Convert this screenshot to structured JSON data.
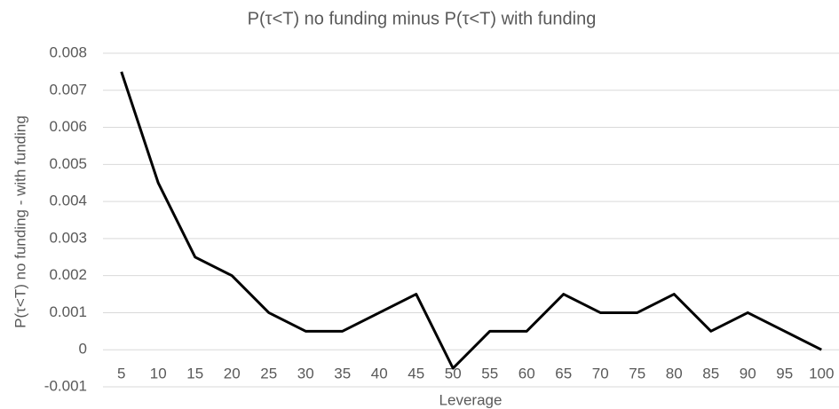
{
  "chart_data": {
    "type": "line",
    "title": "P(τ<T) no funding minus P(τ<T) with funding",
    "x_label": "Leverage",
    "y_label": "P(τ<T) no funding - with funding",
    "categories": [
      5,
      10,
      15,
      20,
      25,
      30,
      35,
      40,
      45,
      50,
      55,
      60,
      65,
      70,
      75,
      80,
      85,
      90,
      95,
      100
    ],
    "series": [
      {
        "name": "P(τ<T) no funding - with funding",
        "color": "#000000",
        "values": [
          0.0075,
          0.0045,
          0.0025,
          0.002,
          0.001,
          0.0005,
          0.0005,
          0.001,
          0.0015,
          -0.0005,
          0.0005,
          0.0005,
          0.0015,
          0.001,
          0.001,
          0.0015,
          0.0005,
          0.001,
          0.0005,
          0
        ]
      }
    ],
    "ylim": [
      -0.001,
      0.008
    ],
    "yticks": [
      -0.001,
      0,
      0.001,
      0.002,
      0.003,
      0.004,
      0.005,
      0.006,
      0.007,
      0.008
    ],
    "grid": true
  }
}
